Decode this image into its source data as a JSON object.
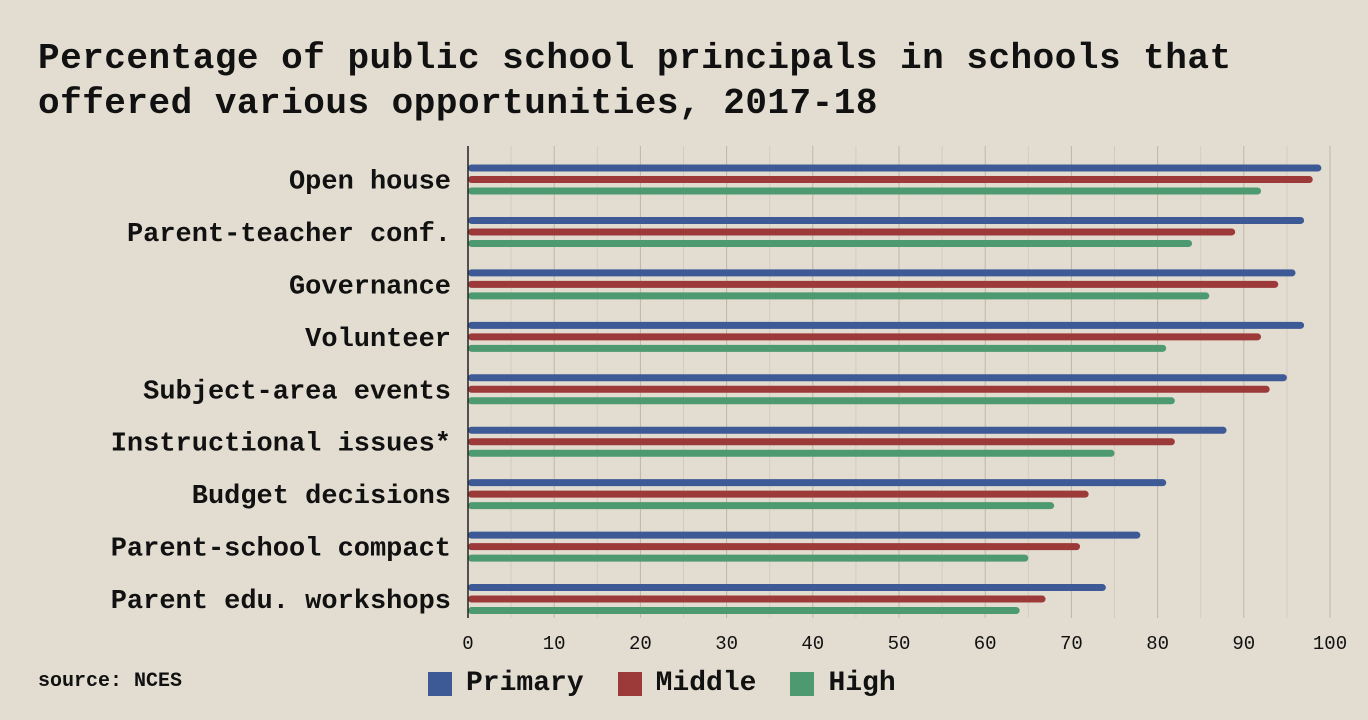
{
  "chart_data": {
    "type": "bar",
    "orientation": "horizontal",
    "title": "Percentage of public school principals in schools that offered various opportunities, 2017-18",
    "categories": [
      "Open house",
      "Parent-teacher conf.",
      "Governance",
      "Volunteer",
      "Subject-area events",
      "Instructional issues*",
      "Budget decisions",
      "Parent-school compact",
      "Parent edu. workshops"
    ],
    "series": [
      {
        "name": "Primary",
        "color": "#3e5a96",
        "values": [
          99,
          97,
          96,
          97,
          95,
          88,
          81,
          78,
          74
        ]
      },
      {
        "name": "Middle",
        "color": "#9c3a3a",
        "values": [
          98,
          89,
          94,
          92,
          93,
          82,
          72,
          71,
          67
        ]
      },
      {
        "name": "High",
        "color": "#4e9a70",
        "values": [
          92,
          84,
          86,
          81,
          82,
          75,
          68,
          65,
          64
        ]
      }
    ],
    "xlim": [
      0,
      100
    ],
    "xticks": [
      0,
      10,
      20,
      30,
      40,
      50,
      60,
      70,
      80,
      90,
      100
    ],
    "grid": true,
    "legend_position": "bottom"
  },
  "source": "source: NCES"
}
